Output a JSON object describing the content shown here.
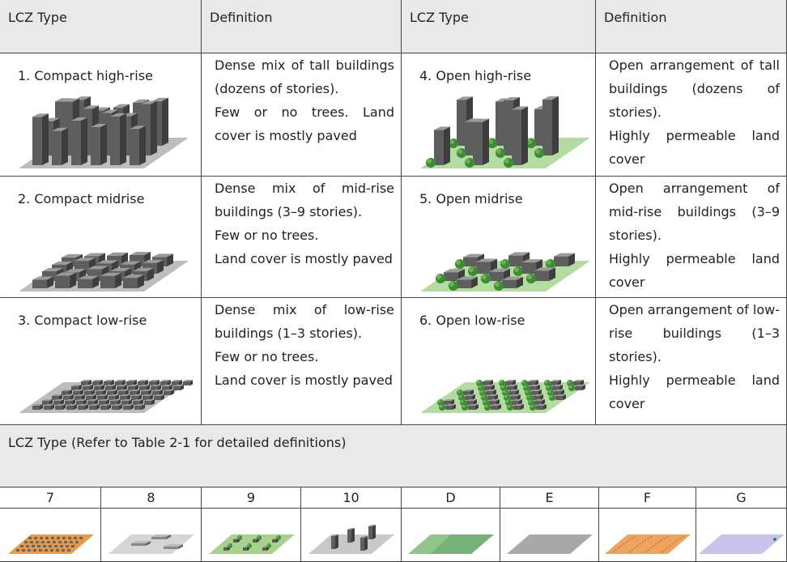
{
  "header": [
    "LCZ Type",
    "Definition",
    "LCZ Type",
    "Definition"
  ],
  "rows": [
    [
      {
        "type": "1. Compact high-rise",
        "definition": [
          "Dense mix of tall buildings (dozens of stories).",
          "Few or no trees. Land cover is mostly paved"
        ]
      },
      {
        "type": "4. Open high-rise",
        "definition": [
          "Open arrangement of tall buildings (dozens of stories).",
          "Highly permeable land cover"
        ]
      }
    ],
    [
      {
        "type": "2. Compact midrise",
        "definition": [
          "Dense mix of mid-rise buildings (3–9 stories).",
          "Few or no trees.",
          "Land cover is mostly paved"
        ]
      },
      {
        "type": "5. Open midrise",
        "definition": [
          "Open arrangement of mid-rise buildings (3–9 stories).",
          "Highly permeable land cover"
        ]
      }
    ],
    [
      {
        "type": "3. Compact low-rise",
        "definition": [
          "Dense mix of low-rise buildings (1–3 stories).",
          "Few or no trees.",
          "Land cover is mostly paved"
        ]
      },
      {
        "type": "6. Open low-rise",
        "definition": [
          "Open arrangement of low-rise buildings (1–3 stories).",
          "Highly permeable land cover"
        ]
      }
    ]
  ],
  "note": "LCZ Type (Refer to Table 2-1 for detailed definitions)",
  "other_types": [
    "7",
    "8",
    "9",
    "10",
    "D",
    "E",
    "F",
    "G"
  ]
}
